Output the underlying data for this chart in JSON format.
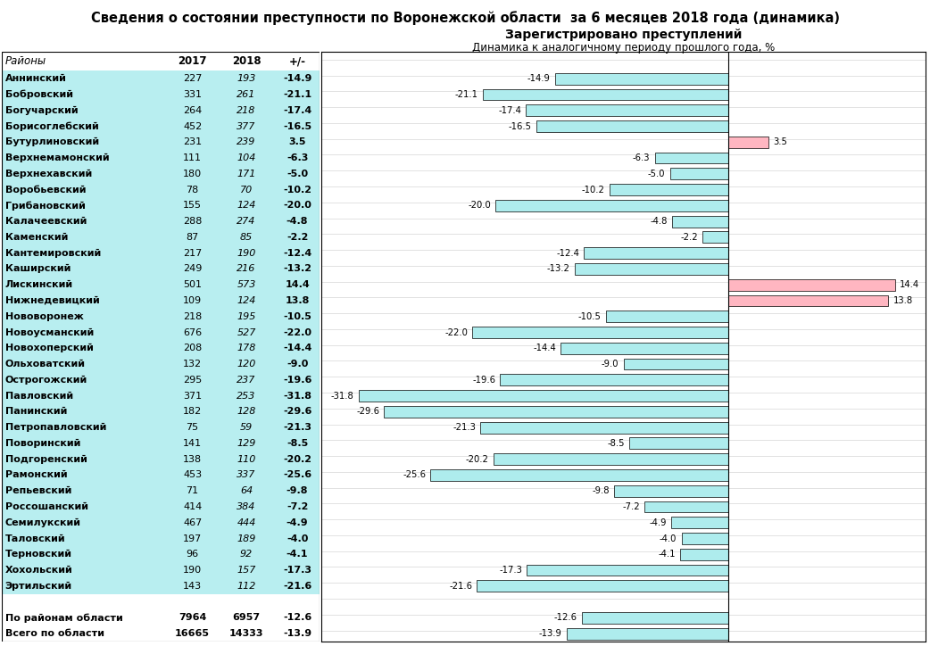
{
  "title": "Сведения о состоянии преступности по Воронежской области  за 6 месяцев 2018 года (динамика)",
  "subtitle1": "Зарегистрировано преступлений",
  "subtitle2": "Динамика к аналогичному периоду прошлого года, %",
  "col_headers": [
    "Районы",
    "2017",
    "2018",
    "+/-"
  ],
  "districts": [
    "Аннинский",
    "Бобровский",
    "Богучарский",
    "Борисоглебский",
    "Бутурлиновский",
    "Верхнемамонский",
    "Верхнехавский",
    "Воробьевский",
    "Грибановский",
    "Калачеевский",
    "Каменский",
    "Кантемировский",
    "Каширский",
    "Лискинский",
    "Нижнедевицкий",
    "Нововоронеж",
    "Новоусманский",
    "Новохоперский",
    "Ольховатский",
    "Острогожский",
    "Павловский",
    "Панинский",
    "Петропавловский",
    "Поворинский",
    "Подгоренский",
    "Рамонский",
    "Репьевский",
    "Россошанский",
    "Семилукский",
    "Таловский",
    "Терновский",
    "Хохольский",
    "Эртильский",
    "",
    "По районам области",
    "Всего по области"
  ],
  "val2017": [
    227,
    331,
    264,
    452,
    231,
    111,
    180,
    78,
    155,
    288,
    87,
    217,
    249,
    501,
    109,
    218,
    676,
    208,
    132,
    295,
    371,
    182,
    75,
    141,
    138,
    453,
    71,
    414,
    467,
    197,
    96,
    190,
    143,
    null,
    7964,
    16665
  ],
  "val2018": [
    193,
    261,
    218,
    377,
    239,
    104,
    171,
    70,
    124,
    274,
    85,
    190,
    216,
    573,
    124,
    195,
    527,
    178,
    120,
    237,
    253,
    128,
    59,
    129,
    110,
    337,
    64,
    384,
    444,
    189,
    92,
    157,
    112,
    null,
    6957,
    14333
  ],
  "change": [
    -14.9,
    -21.1,
    -17.4,
    -16.5,
    3.5,
    -6.3,
    -5.0,
    -10.2,
    -20.0,
    -4.8,
    -2.2,
    -12.4,
    -13.2,
    14.4,
    13.8,
    -10.5,
    -22.0,
    -14.4,
    -9.0,
    -19.6,
    -31.8,
    -29.6,
    -21.3,
    -8.5,
    -20.2,
    -25.6,
    -9.8,
    -7.2,
    -4.9,
    -4.0,
    -4.1,
    -17.3,
    -21.6,
    null,
    -12.6,
    -13.9
  ],
  "positive_color": "#FFB6C1",
  "negative_color": "#AEECED",
  "bg_color": "#B8EEF0",
  "bar_area_bg": "#FFFFFF",
  "axis_min": -35,
  "axis_max": 17
}
